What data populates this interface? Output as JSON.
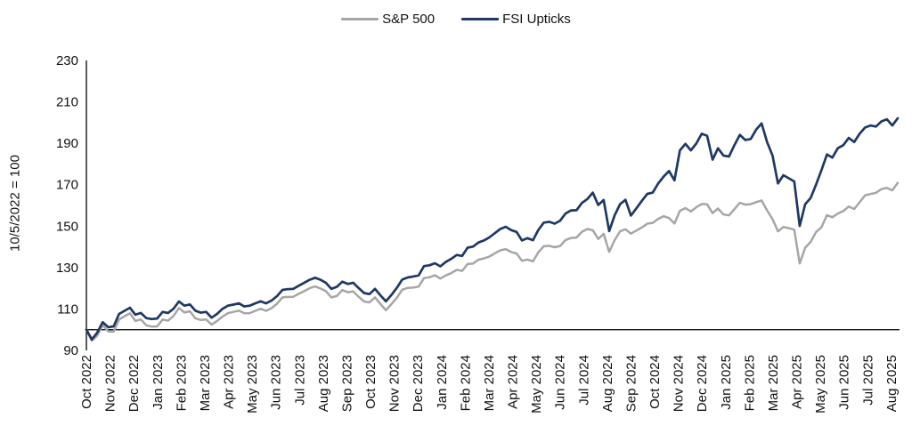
{
  "legend": {
    "items": [
      {
        "label": "S&P 500",
        "color": "#a6a6a6"
      },
      {
        "label": "FSI Upticks",
        "color": "#1f3864"
      }
    ]
  },
  "chart_data": {
    "type": "line",
    "title": "",
    "ylabel": "10/5/2022 = 100",
    "xlabel": "",
    "ylim": [
      90,
      230
    ],
    "yticks": [
      90,
      110,
      130,
      150,
      170,
      190,
      210,
      230
    ],
    "baseline_value": 100,
    "grid": false,
    "legend_position": "top",
    "x_unit": "weeks since 2022-10-05",
    "x_tick_labels": [
      "Oct 2022",
      "Nov 2022",
      "Dec 2022",
      "Jan 2023",
      "Feb 2023",
      "Mar 2023",
      "Apr 2023",
      "May 2023",
      "Jun 2023",
      "Jul 2023",
      "Aug 2023",
      "Sep 2023",
      "Oct 2023",
      "Nov 2023",
      "Dec 2023",
      "Jan 2024",
      "Feb 2024",
      "Mar 2024",
      "Apr 2024",
      "May 2024",
      "Jun 2024",
      "Jul 2024",
      "Aug 2024",
      "Sep 2024",
      "Oct 2024",
      "Nov 2024",
      "Dec 2024",
      "Jan 2025",
      "Feb 2025",
      "Mar 2025",
      "Apr 2025",
      "May 2025",
      "Jun 2025",
      "Jul 2025",
      "Aug 2025"
    ],
    "series": [
      {
        "name": "S&P 500",
        "color": "#a6a6a6",
        "values": [
          100,
          94.7,
          97.2,
          102.2,
          99.2,
          99,
          104.9,
          106.5,
          107.9,
          104.2,
          105,
          102.1,
          101.5,
          101.6,
          104.9,
          104.4,
          106.6,
          110.5,
          108.3,
          108.9,
          105.5,
          104.7,
          104.9,
          102.5,
          104.2,
          106.3,
          108,
          108.6,
          109.2,
          107.9,
          108,
          109.1,
          110.1,
          109.1,
          110.4,
          112.5,
          115.6,
          115.8,
          115.9,
          117.3,
          118.6,
          120,
          120.9,
          119.9,
          118.6,
          115.6,
          116.3,
          119.1,
          118.1,
          118.5,
          115.9,
          113.6,
          113.2,
          115.6,
          112.4,
          109.4,
          112.3,
          115.4,
          119.3,
          120.2,
          120.3,
          120.8,
          124.9,
          125.3,
          126.3,
          124.7,
          126.2,
          127.3,
          128.9,
          128.4,
          131.7,
          131.9,
          133.8,
          134.4,
          135.3,
          136.9,
          138.3,
          138.9,
          137.5,
          136.8,
          133.3,
          133.9,
          133,
          137.4,
          140.3,
          140.5,
          139.8,
          140.4,
          143.3,
          144.3,
          144.5,
          147.3,
          148.6,
          148,
          143.8,
          146.3,
          137.6,
          143.2,
          147.5,
          148.5,
          146.4,
          147.9,
          149.3,
          151.2,
          151.6,
          153.5,
          154.8,
          153.9,
          151.3,
          157.4,
          158.7,
          157.1,
          159.1,
          160.7,
          160.5,
          156.3,
          158.5,
          155.6,
          155.2,
          158.2,
          161.3,
          160.4,
          160.6,
          161.6,
          162.4,
          157.6,
          153.4,
          147.5,
          149.6,
          149,
          148.3,
          132,
          139.6,
          142.4,
          147.2,
          149.5,
          155.3,
          154.3,
          156.1,
          157.3,
          159.5,
          158.3,
          161.5,
          164.9,
          165.5,
          166.1,
          167.9,
          168.5,
          167.3,
          170.9
        ]
      },
      {
        "name": "FSI Upticks",
        "color": "#1f3864",
        "values": [
          100,
          95.3,
          98.6,
          103.6,
          101.2,
          101.6,
          107.6,
          109.1,
          110.6,
          107.2,
          108.1,
          105.6,
          105.1,
          105.4,
          108.6,
          108.1,
          110.1,
          113.6,
          111.6,
          112.2,
          109.2,
          108.2,
          108.6,
          105.8,
          107.6,
          110.1,
          111.6,
          112.1,
          112.7,
          111.2,
          111.6,
          112.7,
          113.7,
          112.7,
          114.1,
          116.2,
          119.2,
          119.6,
          119.7,
          121.2,
          122.7,
          124.1,
          125.1,
          124.1,
          122.6,
          119.7,
          120.7,
          123.2,
          122.1,
          122.7,
          120.1,
          117.7,
          117.2,
          119.7,
          116.6,
          113.7,
          116.7,
          120.2,
          124.2,
          125.2,
          125.7,
          126.2,
          130.7,
          131.1,
          132.1,
          130.6,
          132.7,
          134.2,
          136.1,
          135.6,
          139.6,
          140.1,
          142.1,
          143.1,
          144.6,
          146.6,
          148.6,
          149.7,
          148.1,
          147.2,
          143.1,
          144.2,
          143.2,
          148.2,
          151.7,
          152.1,
          151.2,
          152.6,
          156.1,
          157.6,
          157.7,
          161.2,
          163.1,
          166.2,
          160.2,
          162.6,
          147.6,
          155.2,
          160.6,
          162.7,
          155.1,
          158.6,
          162.2,
          165.6,
          166.2,
          170.6,
          173.9,
          176.6,
          172.1,
          186.6,
          189.7,
          186.6,
          189.9,
          194.6,
          193.6,
          182.1,
          187.6,
          184.1,
          183.6,
          189.1,
          194.1,
          191.6,
          192.1,
          196.6,
          199.6,
          190.6,
          184.1,
          170.6,
          174.6,
          173.1,
          171.6,
          150.1,
          160.6,
          163.6,
          170.1,
          177.1,
          184.6,
          183.1,
          187.6,
          189.1,
          192.6,
          190.6,
          194.6,
          197.6,
          198.6,
          198.1,
          200.6,
          201.6,
          198.6,
          202.1
        ]
      }
    ]
  },
  "colors": {
    "axis": "#000000",
    "tick_text": "#111111",
    "background": "#ffffff"
  }
}
